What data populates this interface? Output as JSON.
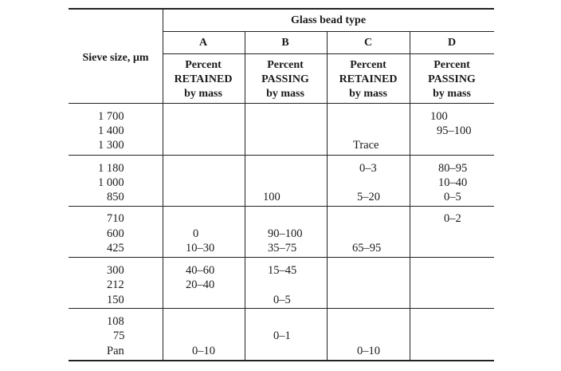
{
  "header": {
    "sieve_label": "Sieve size, µm",
    "group_label": "Glass bead type",
    "columns": [
      {
        "letter": "A",
        "l1": "Percent",
        "l2": "RETAINED",
        "l3": "by mass"
      },
      {
        "letter": "B",
        "l1": "Percent",
        "l2": "PASSING",
        "l3": "by mass"
      },
      {
        "letter": "C",
        "l1": "Percent",
        "l2": "RETAINED",
        "l3": "by mass"
      },
      {
        "letter": "D",
        "l1": "Percent",
        "l2": "PASSING",
        "l3": "by mass"
      }
    ]
  },
  "groups": [
    {
      "sieves": [
        "1 700",
        "1 400",
        "1 300"
      ],
      "A": [
        "",
        "",
        ""
      ],
      "B": [
        "",
        "",
        ""
      ],
      "C": [
        "",
        "",
        "Trace"
      ],
      "D": [
        "100",
        "95–100",
        ""
      ]
    },
    {
      "sieves": [
        "1 180",
        "1 000",
        "850"
      ],
      "A": [
        "",
        "",
        ""
      ],
      "B": [
        "",
        "",
        "100"
      ],
      "C": [
        "0–3",
        "",
        "5–20"
      ],
      "D": [
        "80–95",
        "10–40",
        "0–5"
      ]
    },
    {
      "sieves": [
        "710",
        "600",
        "425"
      ],
      "A": [
        "",
        "0",
        "10–30"
      ],
      "B": [
        "",
        "90–100",
        "35–75"
      ],
      "C": [
        "",
        "",
        "65–95"
      ],
      "D": [
        "0–2",
        "",
        ""
      ]
    },
    {
      "sieves": [
        "300",
        "212",
        "150"
      ],
      "A": [
        "40–60",
        "20–40",
        ""
      ],
      "B": [
        "15–45",
        "",
        "0–5"
      ],
      "C": [
        "",
        "",
        ""
      ],
      "D": [
        "",
        "",
        ""
      ]
    },
    {
      "sieves": [
        "108",
        "75",
        "Pan"
      ],
      "A": [
        "",
        "",
        "0–10"
      ],
      "B": [
        "",
        "0–1",
        ""
      ],
      "C": [
        "",
        "",
        "0–10"
      ],
      "D": [
        "",
        "",
        ""
      ]
    }
  ]
}
